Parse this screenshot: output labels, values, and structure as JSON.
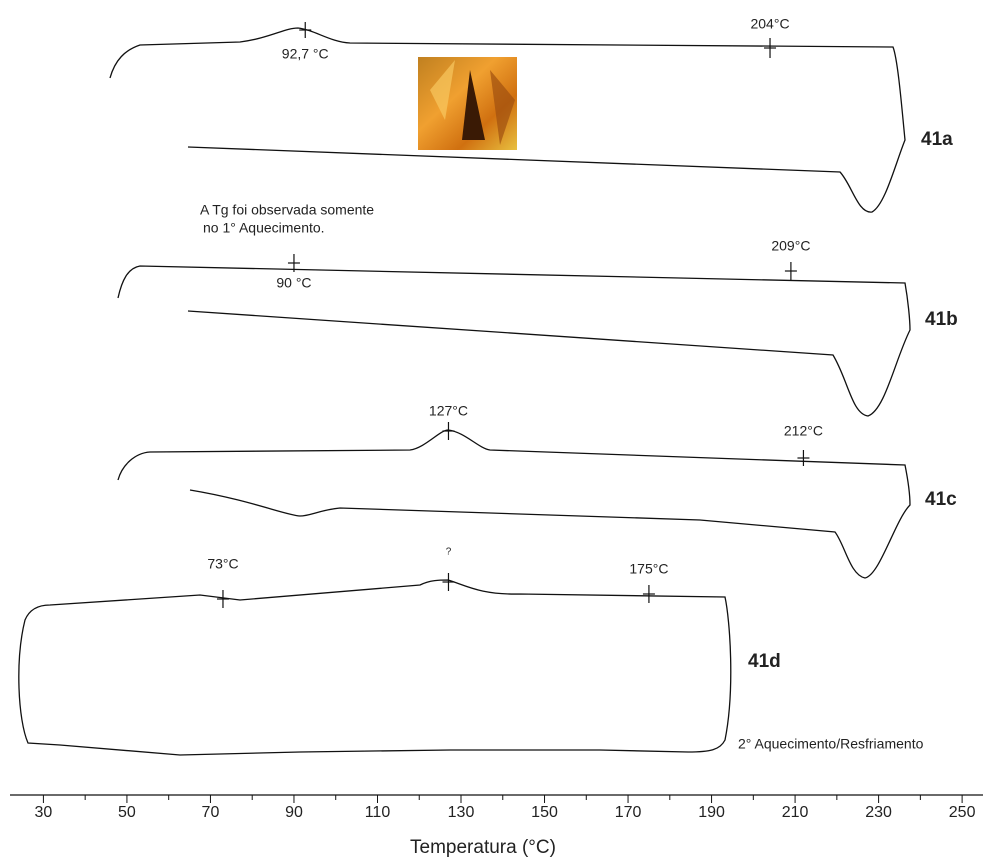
{
  "chart_data": {
    "type": "thermogram",
    "xlabel": "Temperatura  (°C)",
    "xlim": [
      22,
      255
    ],
    "xticks": [
      30,
      50,
      70,
      90,
      110,
      130,
      150,
      170,
      190,
      210,
      230,
      250
    ],
    "xminorticks": [
      40,
      60,
      80,
      100,
      120,
      140,
      160,
      180,
      200,
      220,
      240
    ],
    "curves": [
      {
        "name": "41a",
        "markers": [
          {
            "value": 92.7,
            "label": "92,7 °C"
          },
          {
            "value": 204,
            "label": "204°C"
          }
        ]
      },
      {
        "name": "41b",
        "markers": [
          {
            "value": 90,
            "label": "90 °C"
          },
          {
            "value": 209,
            "label": "209°C"
          }
        ]
      },
      {
        "name": "41c",
        "markers": [
          {
            "value": 127,
            "label": "127°C"
          },
          {
            "value": 212,
            "label": "212°C"
          }
        ]
      },
      {
        "name": "41d",
        "markers": [
          {
            "value": 73,
            "label": "73°C"
          },
          {
            "value": 127,
            "label": "?"
          },
          {
            "value": 175,
            "label": "175°C"
          }
        ]
      }
    ],
    "annotations": [
      "A Tg foi observada somente",
      "no 1° Aquecimento.",
      "2° Aquecimento/Resfriamento"
    ]
  }
}
